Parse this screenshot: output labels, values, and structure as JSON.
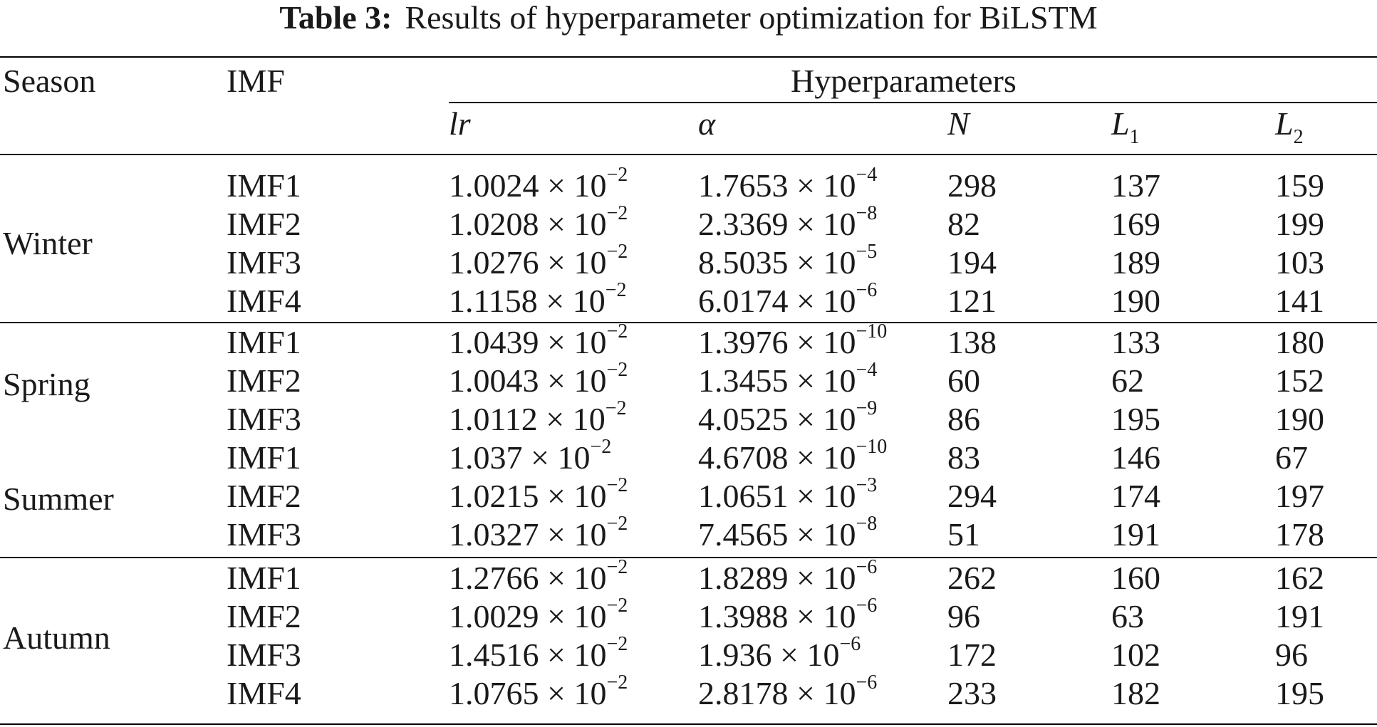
{
  "caption": {
    "label": "Table 3:",
    "text": "Results of hyperparameter optimization for BiLSTM"
  },
  "header": {
    "season": "Season",
    "imf": "IMF",
    "group": "Hyperparameters",
    "lr": "lr",
    "alpha": "α",
    "n": "N",
    "l1": "L",
    "l1_sub": "1",
    "l2": "L",
    "l2_sub": "2"
  },
  "seasons": [
    {
      "name": "Winter"
    },
    {
      "name": "Spring"
    },
    {
      "name": "Summer"
    },
    {
      "name": "Autumn"
    }
  ],
  "rows": [
    {
      "imf": "IMF1",
      "lr_base": "1.0024 × 10",
      "lr_exp": "−2",
      "alpha_base": "1.7653 × 10",
      "alpha_exp": "−4",
      "n": "298",
      "l1": "137",
      "l2": "159"
    },
    {
      "imf": "IMF2",
      "lr_base": "1.0208 × 10",
      "lr_exp": "−2",
      "alpha_base": "2.3369 × 10",
      "alpha_exp": "−8",
      "n": "82",
      "l1": "169",
      "l2": "199"
    },
    {
      "imf": "IMF3",
      "lr_base": "1.0276 × 10",
      "lr_exp": "−2",
      "alpha_base": "8.5035 × 10",
      "alpha_exp": "−5",
      "n": "194",
      "l1": "189",
      "l2": "103"
    },
    {
      "imf": "IMF4",
      "lr_base": "1.1158 × 10",
      "lr_exp": "−2",
      "alpha_base": "6.0174 × 10",
      "alpha_exp": "−6",
      "n": "121",
      "l1": "190",
      "l2": "141"
    },
    {
      "imf": "IMF1",
      "lr_base": "1.0439 × 10",
      "lr_exp": "−2",
      "alpha_base": "1.3976 × 10",
      "alpha_exp": "−10",
      "n": "138",
      "l1": "133",
      "l2": "180"
    },
    {
      "imf": "IMF2",
      "lr_base": "1.0043 × 10",
      "lr_exp": "−2",
      "alpha_base": "1.3455 × 10",
      "alpha_exp": "−4",
      "n": "60",
      "l1": "62",
      "l2": "152"
    },
    {
      "imf": "IMF3",
      "lr_base": "1.0112 × 10",
      "lr_exp": "−2",
      "alpha_base": "4.0525 × 10",
      "alpha_exp": "−9",
      "n": "86",
      "l1": "195",
      "l2": "190"
    },
    {
      "imf": "IMF1",
      "lr_base": "1.037 × 10",
      "lr_exp": "−2",
      "alpha_base": "4.6708 × 10",
      "alpha_exp": "−10",
      "n": "83",
      "l1": "146",
      "l2": "67"
    },
    {
      "imf": "IMF2",
      "lr_base": "1.0215 × 10",
      "lr_exp": "−2",
      "alpha_base": "1.0651 × 10",
      "alpha_exp": "−3",
      "n": "294",
      "l1": "174",
      "l2": "197"
    },
    {
      "imf": "IMF3",
      "lr_base": "1.0327 × 10",
      "lr_exp": "−2",
      "alpha_base": "7.4565 × 10",
      "alpha_exp": "−8",
      "n": "51",
      "l1": "191",
      "l2": "178"
    },
    {
      "imf": "IMF1",
      "lr_base": "1.2766 × 10",
      "lr_exp": "−2",
      "alpha_base": "1.8289 × 10",
      "alpha_exp": "−6",
      "n": "262",
      "l1": "160",
      "l2": "162"
    },
    {
      "imf": "IMF2",
      "lr_base": "1.0029 × 10",
      "lr_exp": "−2",
      "alpha_base": "1.3988 × 10",
      "alpha_exp": "−6",
      "n": "96",
      "l1": "63",
      "l2": "191"
    },
    {
      "imf": "IMF3",
      "lr_base": "1.4516 × 10",
      "lr_exp": "−2",
      "alpha_base": "1.936 × 10",
      "alpha_exp": "−6",
      "n": "172",
      "l1": "102",
      "l2": "96"
    },
    {
      "imf": "IMF4",
      "lr_base": "1.0765 × 10",
      "lr_exp": "−2",
      "alpha_base": "2.8178 × 10",
      "alpha_exp": "−6",
      "n": "233",
      "l1": "182",
      "l2": "195"
    }
  ]
}
